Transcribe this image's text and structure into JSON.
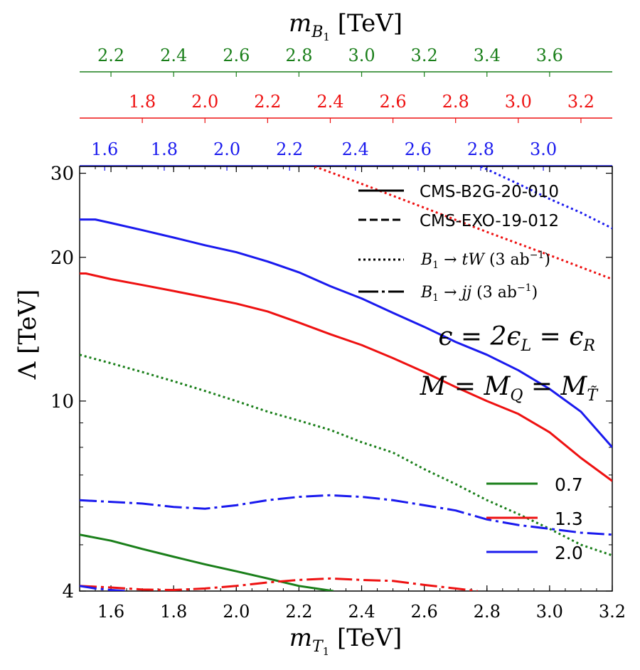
{
  "chart_data": {
    "type": "line",
    "title": "",
    "xlabel": "m_{T_1} [TeV]",
    "xlabel_parts": {
      "base": "m",
      "sub": "T",
      "subsub": "1",
      "unit": "[TeV]"
    },
    "ylabel": "Λ [TeV]",
    "top_axis_label": "m_{B_1} [TeV]",
    "top_axis_label_parts": {
      "base": "m",
      "sub": "B",
      "subsub": "1",
      "unit": "[TeV]"
    },
    "xlim": [
      1.5,
      3.2
    ],
    "ylim": [
      4,
      31
    ],
    "yscale": "log",
    "xticks": [
      1.6,
      1.8,
      2.0,
      2.2,
      2.4,
      2.6,
      2.8,
      3.0,
      3.2
    ],
    "xtick_labels": [
      "1.6",
      "1.8",
      "2.0",
      "2.2",
      "2.4",
      "2.6",
      "2.8",
      "3.0",
      "3.2"
    ],
    "yticks": [
      4,
      10,
      20,
      30
    ],
    "ytick_labels": [
      "4",
      "10",
      "20",
      "30"
    ],
    "top_axes": [
      {
        "name": "green",
        "color": "#1a7f1a",
        "ticks": [
          2.2,
          2.4,
          2.6,
          2.8,
          3.0,
          3.2,
          3.4,
          3.6
        ],
        "labels": [
          "2.2",
          "2.4",
          "2.6",
          "2.8",
          "3.0",
          "3.2",
          "3.4",
          "3.6"
        ],
        "at_mT1": [
          1.6,
          1.8,
          2.0,
          2.2,
          2.4,
          2.6,
          2.8,
          3.0
        ]
      },
      {
        "name": "red",
        "color": "#ee1111",
        "ticks": [
          1.8,
          2.0,
          2.2,
          2.4,
          2.6,
          2.8,
          3.0,
          3.2
        ],
        "labels": [
          "1.8",
          "2.0",
          "2.2",
          "2.4",
          "2.6",
          "2.8",
          "3.0",
          "3.2"
        ],
        "at_mT1": [
          1.7,
          1.9,
          2.1,
          2.3,
          2.5,
          2.7,
          2.9,
          3.1
        ]
      },
      {
        "name": "blue",
        "color": "#1a1aee",
        "ticks": [
          1.6,
          1.8,
          2.0,
          2.2,
          2.4,
          2.6,
          2.8,
          3.0
        ],
        "labels": [
          "1.6",
          "1.8",
          "2.0",
          "2.2",
          "2.4",
          "2.6",
          "2.8",
          "3.0"
        ],
        "at_mT1": [
          1.58,
          1.77,
          1.97,
          2.17,
          2.38,
          2.58,
          2.78,
          2.98
        ]
      }
    ],
    "series": [
      {
        "name": "CMS-B2G-20-010, ε=2.0",
        "style": "solid",
        "color": "#1a1aee",
        "x": [
          1.5,
          1.55,
          1.6,
          1.7,
          1.8,
          1.9,
          2.0,
          2.1,
          2.2,
          2.3,
          2.4,
          2.5,
          2.6,
          2.7,
          2.8,
          2.9,
          3.0,
          3.1,
          3.2
        ],
        "y": [
          24.0,
          24.0,
          23.6,
          22.8,
          22.0,
          21.2,
          20.5,
          19.6,
          18.6,
          17.4,
          16.4,
          15.3,
          14.3,
          13.3,
          12.5,
          11.6,
          10.6,
          9.5,
          8.0
        ]
      },
      {
        "name": "CMS-B2G-20-010, ε=1.3",
        "style": "solid",
        "color": "#ee1111",
        "x": [
          1.5,
          1.52,
          1.6,
          1.7,
          1.8,
          1.9,
          2.0,
          2.1,
          2.2,
          2.3,
          2.4,
          2.5,
          2.6,
          2.7,
          2.8,
          2.9,
          3.0,
          3.1,
          3.2
        ],
        "y": [
          18.5,
          18.5,
          18.0,
          17.5,
          17.0,
          16.5,
          16.0,
          15.4,
          14.6,
          13.8,
          13.1,
          12.3,
          11.5,
          10.7,
          10.0,
          9.4,
          8.6,
          7.6,
          6.8
        ]
      },
      {
        "name": "CMS-B2G-20-010, ε=0.7",
        "style": "solid",
        "color": "#1a7f1a",
        "x": [
          1.5,
          1.6,
          1.7,
          1.8,
          1.9,
          2.0,
          2.1,
          2.2,
          2.31
        ],
        "y": [
          5.25,
          5.1,
          4.9,
          4.72,
          4.55,
          4.4,
          4.25,
          4.1,
          4.0
        ]
      },
      {
        "name": "B1 → tW (3 ab⁻¹), ε=0.7",
        "style": "dotted",
        "color": "#1a7f1a",
        "x": [
          1.5,
          1.6,
          1.7,
          1.8,
          1.9,
          2.0,
          2.1,
          2.2,
          2.3,
          2.4,
          2.5,
          2.6,
          2.7,
          2.8,
          2.9,
          3.0,
          3.1,
          3.2
        ],
        "y": [
          12.5,
          12.0,
          11.5,
          11.0,
          10.5,
          10.0,
          9.5,
          9.1,
          8.7,
          8.2,
          7.8,
          7.2,
          6.7,
          6.2,
          5.8,
          5.4,
          5.0,
          4.75
        ]
      },
      {
        "name": "B1 → tW (3 ab⁻¹), ε=1.3",
        "style": "dotted",
        "color": "#ee1111",
        "x": [
          2.25,
          2.4,
          2.6,
          2.8,
          3.0,
          3.2
        ],
        "y": [
          31.0,
          28.5,
          25.4,
          22.6,
          20.2,
          18.0
        ]
      },
      {
        "name": "B1 → tW (3 ab⁻¹), ε=2.0",
        "style": "dotted",
        "color": "#1a1aee",
        "x": [
          2.78,
          2.9,
          3.0,
          3.1,
          3.2
        ],
        "y": [
          31.0,
          28.5,
          26.5,
          24.8,
          23.0
        ]
      },
      {
        "name": "B1 → jj (3 ab⁻¹), ε=2.0",
        "style": "dashdot",
        "color": "#1a1aee",
        "x": [
          1.5,
          1.6,
          1.7,
          1.8,
          1.9,
          2.0,
          2.1,
          2.2,
          2.3,
          2.4,
          2.5,
          2.6,
          2.7,
          2.8,
          2.9,
          3.0,
          3.1,
          3.2
        ],
        "y": [
          6.2,
          6.15,
          6.1,
          6.0,
          5.95,
          6.05,
          6.2,
          6.3,
          6.35,
          6.3,
          6.2,
          6.05,
          5.9,
          5.65,
          5.5,
          5.4,
          5.3,
          5.25
        ]
      },
      {
        "name": "B1 → jj (3 ab⁻¹), ε=1.3",
        "style": "dashdot",
        "color": "#ee1111",
        "x": [
          1.5,
          1.6,
          1.7,
          1.8,
          1.9,
          2.0,
          2.1,
          2.2,
          2.3,
          2.4,
          2.5,
          2.6,
          2.7,
          2.77
        ],
        "y": [
          4.1,
          4.07,
          4.03,
          4.02,
          4.05,
          4.1,
          4.17,
          4.22,
          4.25,
          4.22,
          4.2,
          4.12,
          4.05,
          4.0
        ]
      },
      {
        "name": "B1 → jj (3 ab⁻¹), ε=2.0 (low)",
        "style": "dashdot",
        "color": "#1a1aee",
        "x": [
          1.5,
          1.55,
          1.6,
          1.65
        ],
        "y": [
          4.1,
          4.05,
          4.02,
          4.0
        ]
      }
    ],
    "legend_styles": {
      "position": "upper-right",
      "entries": [
        {
          "label": "CMS-B2G-20-010",
          "style": "solid"
        },
        {
          "label": "CMS-EXO-19-012",
          "style": "dashed"
        },
        {
          "label": "B1 → tW (3 ab⁻¹)",
          "style": "dotted",
          "math": {
            "pre": "B",
            "sub": "1",
            "mid": " → ",
            "italic": "tW",
            "paren_open": " (3 ab",
            "sup": "−1",
            "paren_close": ")"
          }
        },
        {
          "label": "B1 → jj (3 ab⁻¹)",
          "style": "dashdot",
          "math": {
            "pre": "B",
            "sub": "1",
            "mid": " → ",
            "italic": "jj",
            "paren_open": " (3 ab",
            "sup": "−1",
            "paren_close": ")"
          }
        }
      ]
    },
    "legend_colors": {
      "position": "lower-right",
      "entries": [
        {
          "label": "0.7",
          "color": "#1a7f1a"
        },
        {
          "label": "1.3",
          "color": "#ee1111"
        },
        {
          "label": "2.0",
          "color": "#1a1aee"
        }
      ]
    },
    "annotations": [
      {
        "text": "ε = 2ε_L = ε_R",
        "parts": [
          "ϵ = 2ϵ",
          "L",
          " = ϵ",
          "R"
        ]
      },
      {
        "text": "M = M_Q = M_T̃",
        "parts": [
          "M = M",
          "Q",
          " = M",
          "T̃"
        ]
      }
    ]
  }
}
